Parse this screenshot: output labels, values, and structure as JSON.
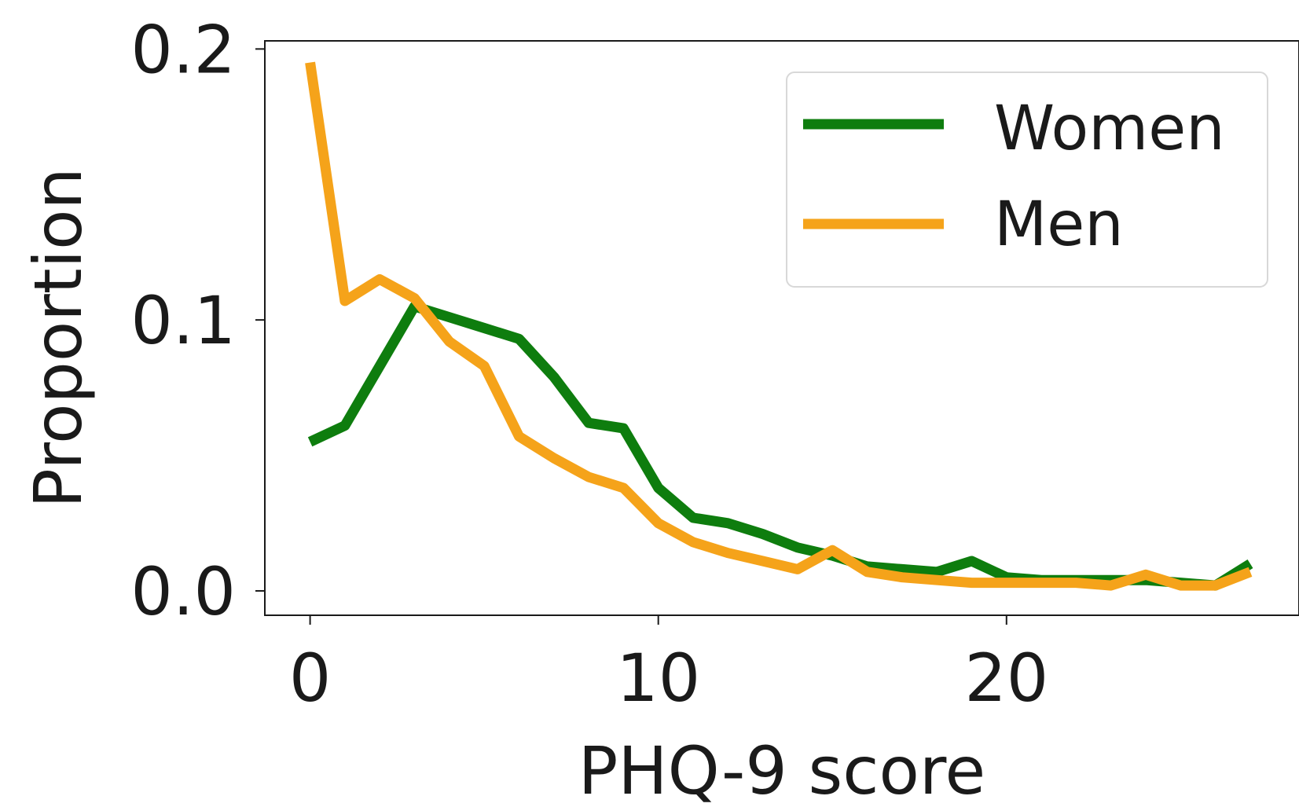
{
  "chart_data": {
    "type": "line",
    "xlabel": "PHQ-9 score",
    "ylabel": "Proportion",
    "xlim": [
      -1.3,
      28.4
    ],
    "ylim": [
      -0.009,
      0.203
    ],
    "xticks": [
      0,
      10,
      20
    ],
    "xtick_labels": [
      "0",
      "10",
      "20"
    ],
    "yticks": [
      0.0,
      0.1,
      0.2
    ],
    "ytick_labels": [
      "0.0",
      "0.1",
      "0.2"
    ],
    "grid": false,
    "legend_position": "top-right",
    "x": [
      0,
      1,
      2,
      3,
      4,
      5,
      6,
      7,
      8,
      9,
      10,
      11,
      12,
      13,
      14,
      15,
      16,
      17,
      18,
      19,
      20,
      21,
      22,
      23,
      24,
      25,
      26,
      27
    ],
    "series": [
      {
        "name": "Women",
        "color": "#0e7d0e",
        "values": [
          0.055,
          0.061,
          0.083,
          0.105,
          0.101,
          0.097,
          0.093,
          0.079,
          0.062,
          0.06,
          0.038,
          0.027,
          0.025,
          0.021,
          0.016,
          0.013,
          0.009,
          0.008,
          0.007,
          0.011,
          0.005,
          0.004,
          0.004,
          0.004,
          0.004,
          0.003,
          0.002,
          0.01
        ]
      },
      {
        "name": "Men",
        "color": "#f5a31a",
        "values": [
          0.195,
          0.107,
          0.115,
          0.108,
          0.092,
          0.083,
          0.057,
          0.049,
          0.042,
          0.038,
          0.025,
          0.018,
          0.014,
          0.011,
          0.008,
          0.015,
          0.007,
          0.005,
          0.004,
          0.003,
          0.003,
          0.003,
          0.003,
          0.002,
          0.006,
          0.002,
          0.002,
          0.007
        ]
      }
    ]
  }
}
